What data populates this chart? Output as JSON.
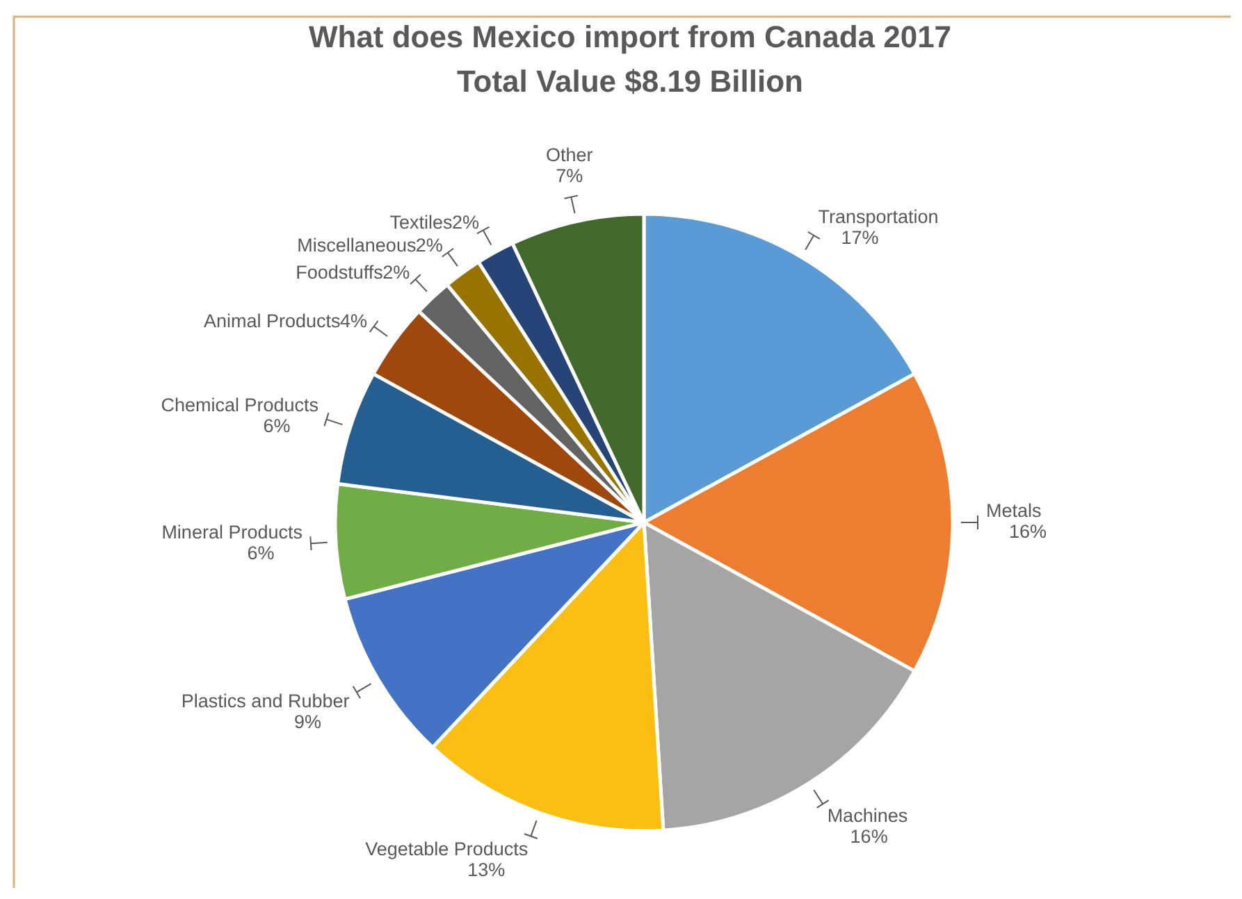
{
  "chart_data": {
    "type": "pie",
    "title": "What does Mexico import from Canada 2017",
    "subtitle": "Total Value $8.19 Billion",
    "categories": [
      "Transportation",
      "Metals",
      "Machines",
      "Vegetable Products",
      "Plastics and Rubber",
      "Mineral Products",
      "Chemical Products",
      "Animal Products",
      "Foodstuffs",
      "Miscellaneous",
      "Textiles",
      "Other"
    ],
    "values": [
      17,
      16,
      16,
      13,
      9,
      6,
      6,
      4,
      2,
      2,
      2,
      7
    ],
    "colors": [
      "#5b9bd5",
      "#ed7d31",
      "#a5a5a5",
      "#fbbf14",
      "#4472c4",
      "#70ad47",
      "#255e91",
      "#9e480e",
      "#636363",
      "#997300",
      "#264478",
      "#43682b"
    ],
    "value_labels": [
      "17%",
      "16%",
      "16%",
      "13%",
      "9%",
      "6%",
      "6%",
      "4%",
      "2%",
      "2%",
      "2%",
      "7%"
    ]
  }
}
